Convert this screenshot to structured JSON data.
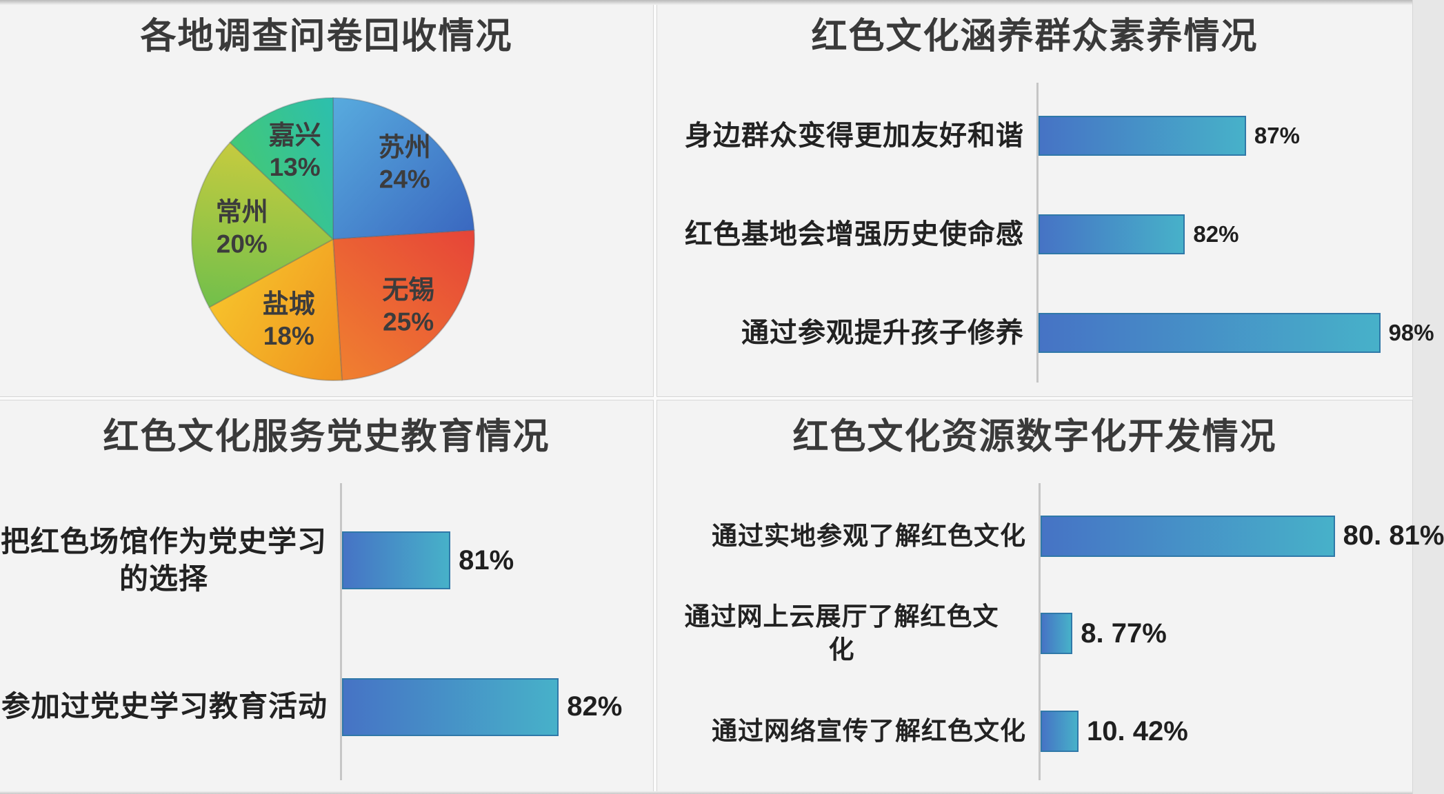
{
  "page": {
    "background": "#f2f2f2",
    "panel_background": "#f3f3f3",
    "gutter_color": "#fbfbfb",
    "panel_border": "#d6d6d6",
    "title_color": "#3a3a3a",
    "label_color": "#222222",
    "value_color": "#1f1f1f",
    "axis_color": "#c6c6c6",
    "bar_gradient_start": "#4673c5",
    "bar_gradient_end": "#47b1c9",
    "bar_border": "#2f78a8"
  },
  "chart_data": [
    {
      "id": "questionnaire-recovery-pie",
      "type": "pie",
      "title": "各地调查问卷回收情况",
      "legend_position": "none",
      "direction": "clockwise",
      "start_angle_deg": 0,
      "slices": [
        {
          "name": "苏州",
          "value": 24,
          "label": "24%",
          "color_start": "#58abde",
          "color_end": "#3a68c0",
          "label_r": 0.74
        },
        {
          "name": "无锡",
          "value": 25,
          "label": "25%",
          "color_start": "#e64438",
          "color_end": "#f08030",
          "label_r": 0.71
        },
        {
          "name": "盐城",
          "value": 18,
          "label": "18%",
          "color_start": "#f0931f",
          "color_end": "#f6c12b",
          "label_r": 0.65
        },
        {
          "name": "常州",
          "value": 20,
          "label": "20%",
          "color_start": "#71bf4b",
          "color_end": "#c6cb3f",
          "label_r": 0.65
        },
        {
          "name": "嘉兴",
          "value": 13,
          "label": "13%",
          "color_start": "#42c878",
          "color_end": "#2cbfae",
          "label_r": 0.68
        }
      ]
    },
    {
      "id": "culture-nurture-quality-bars",
      "type": "bar",
      "orientation": "horizontal",
      "grid": false,
      "title": "红色文化涵养群众素养情况",
      "categories": [
        "身边群众变得更加友好和谐",
        "红色基地会增强历史使命感",
        "通过参观提升孩子修养"
      ],
      "values": [
        87,
        82,
        98
      ],
      "value_labels": [
        "87%",
        "82%",
        "98%"
      ],
      "xlim": [
        70,
        100
      ]
    },
    {
      "id": "party-history-education-bars",
      "type": "bar",
      "orientation": "horizontal",
      "grid": false,
      "title": "红色文化服务党史教育情况",
      "categories": [
        "把红色场馆作为党史学习\n的选择",
        "参加过党史学习教育活动"
      ],
      "values": [
        81,
        82
      ],
      "value_labels": [
        "81%",
        "82%"
      ],
      "xlim": [
        80,
        82.8
      ]
    },
    {
      "id": "digital-development-bars",
      "type": "bar",
      "orientation": "horizontal",
      "grid": false,
      "title": "红色文化资源数字化开发情况",
      "categories": [
        "通过实地参观了解红色文化",
        "通过网上云展厅了解红色文\n化",
        "通过网络宣传了解红色文化"
      ],
      "values": [
        80.81,
        8.77,
        10.42
      ],
      "value_labels": [
        "80. 81%",
        "8. 77%",
        "10. 42%"
      ],
      "xlim": [
        0,
        100
      ]
    }
  ]
}
